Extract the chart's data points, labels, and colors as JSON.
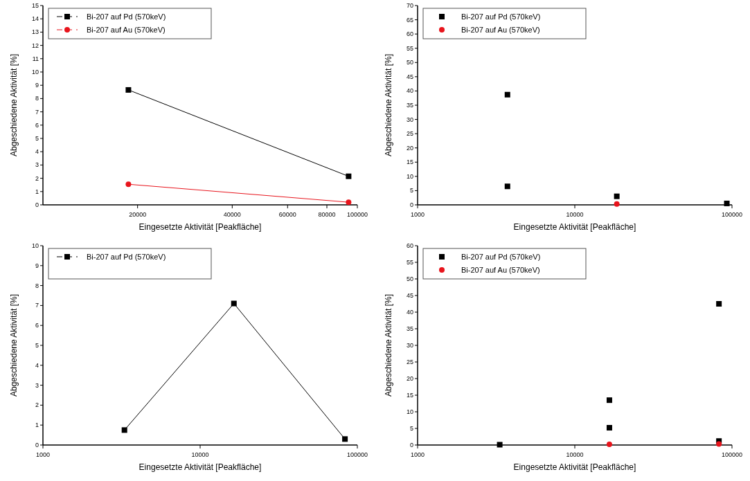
{
  "chart_data": [
    {
      "type": "line",
      "xlabel": "Eingesetzte Aktivität [Peakfläche]",
      "ylabel": "Abgeschiedene Aktivität [%]",
      "log": "x",
      "xlim": [
        10000,
        100000
      ],
      "xticks": [
        20000,
        40000,
        60000,
        80000,
        100000
      ],
      "ylim": [
        0,
        15
      ],
      "yticks": [
        0,
        1,
        2,
        3,
        4,
        5,
        6,
        7,
        8,
        9,
        10,
        11,
        12,
        13,
        14,
        15
      ],
      "legend": "top left",
      "series": [
        {
          "name": "Bi-207 auf Pd (570keV)",
          "color": "#000000",
          "marker": "square",
          "x": [
            18700,
            93800
          ],
          "values": [
            8.65,
            2.15
          ]
        },
        {
          "name": "Bi-207 auf Au (570keV)",
          "color": "#e8141c",
          "marker": "circle",
          "x": [
            18700,
            93800
          ],
          "values": [
            1.55,
            0.2
          ]
        }
      ]
    },
    {
      "type": "scatter",
      "xlabel": "Eingesetzte Aktivität [Peakfläche]",
      "ylabel": "Abgeschiedene Aktivität [%]",
      "log": "x",
      "xlim": [
        1000,
        100000
      ],
      "xticks": [
        1000,
        10000,
        100000
      ],
      "ylim": [
        0,
        70
      ],
      "yticks": [
        0,
        5,
        10,
        15,
        20,
        25,
        30,
        35,
        40,
        45,
        50,
        55,
        60,
        65,
        70
      ],
      "legend": "top left",
      "series": [
        {
          "name": "Bi-207 auf Pd (570keV)",
          "color": "#000000",
          "marker": "square",
          "x": [
            3730,
            3730,
            18500,
            92700
          ],
          "values": [
            38.7,
            6.5,
            3.0,
            0.5
          ]
        },
        {
          "name": "Bi-207 auf Au (570keV)",
          "color": "#e8141c",
          "marker": "circle",
          "x": [
            18500
          ],
          "values": [
            0.3
          ]
        }
      ]
    },
    {
      "type": "line",
      "xlabel": "Eingesetzte Aktivität [Peakfläche]",
      "ylabel": "Abgeschiedene Aktivität [%]",
      "log": "x",
      "xlim": [
        1000,
        100000
      ],
      "xticks": [
        1000,
        10000,
        100000
      ],
      "ylim": [
        0,
        10
      ],
      "yticks": [
        0,
        1,
        2,
        3,
        4,
        5,
        6,
        7,
        8,
        9,
        10
      ],
      "legend": "top left",
      "series": [
        {
          "name": "Bi-207 auf Pd (570keV)",
          "color": "#000000",
          "marker": "square",
          "x": [
            3300,
            16400,
            83400
          ],
          "values": [
            0.75,
            7.1,
            0.3
          ]
        }
      ]
    },
    {
      "type": "scatter",
      "xlabel": "Eingesetzte Aktivität [Peakfläche]",
      "ylabel": "Abgeschiedene Aktivität [%]",
      "log": "x",
      "xlim": [
        1000,
        100000
      ],
      "xticks": [
        1000,
        10000,
        100000
      ],
      "ylim": [
        0,
        60
      ],
      "yticks": [
        0,
        5,
        10,
        15,
        20,
        25,
        30,
        35,
        40,
        45,
        50,
        55,
        60
      ],
      "legend": "top left",
      "series": [
        {
          "name": "Bi-207 auf Pd (570keV)",
          "color": "#000000",
          "marker": "square",
          "x": [
            3330,
            16600,
            16600,
            82600,
            82600
          ],
          "values": [
            0.1,
            13.5,
            5.2,
            42.5,
            1.2
          ]
        },
        {
          "name": "Bi-207 auf Au (570keV)",
          "color": "#e8141c",
          "marker": "circle",
          "x": [
            16600,
            82600
          ],
          "values": [
            0.2,
            0.3
          ]
        }
      ]
    }
  ]
}
